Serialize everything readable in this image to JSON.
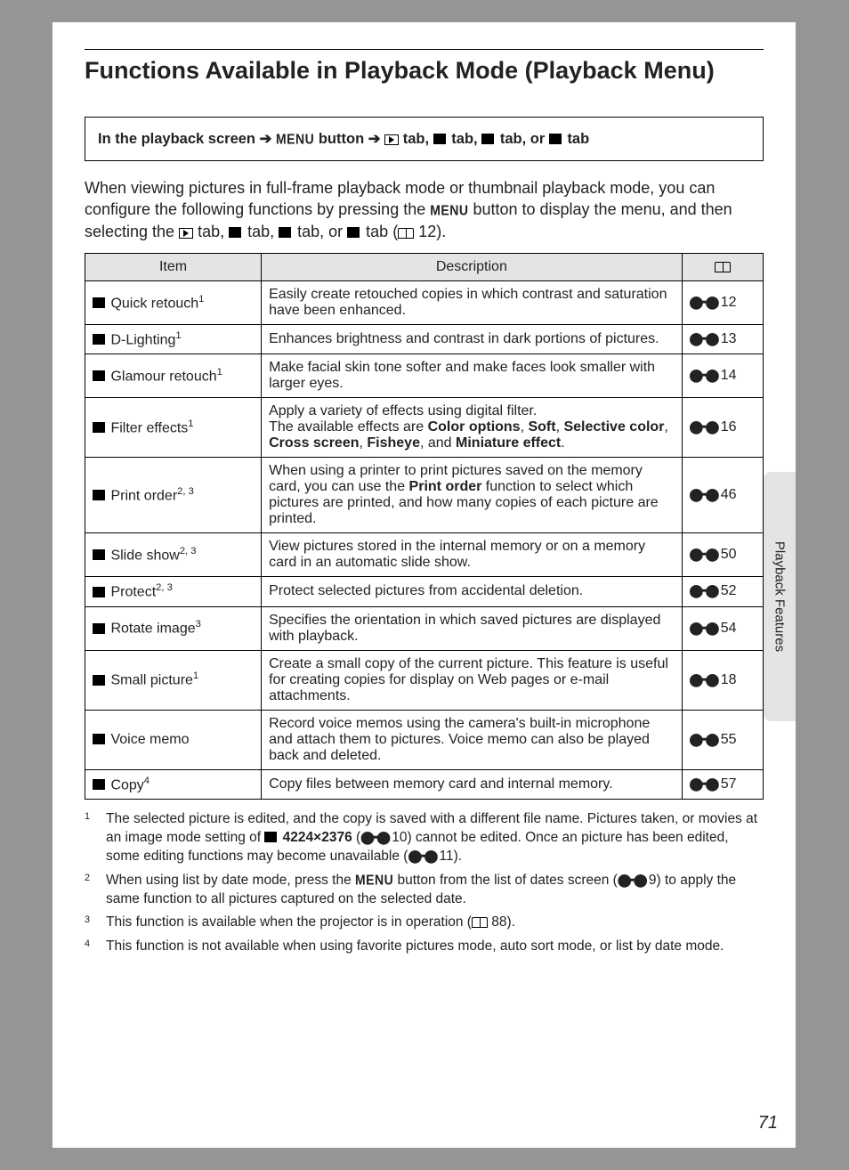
{
  "heading": "Functions Available in Playback Mode (Playback Menu)",
  "side_tab": "Playback Features",
  "nav_box": {
    "prefix": "In the playback screen",
    "arrow": "➔",
    "menu": "MENU",
    "button_word": "button",
    "tab_word": "tab,",
    "tab_word_or": "tab, or",
    "tab_word_end": "tab"
  },
  "intro": {
    "l1": "When viewing pictures in full-frame playback mode or thumbnail playback mode, you can configure the following functions by pressing the ",
    "menu": "MENU",
    "l2": " button to display the menu, and then selecting the ",
    "tab_sep": " tab, ",
    "tab_or": " tab, or ",
    "tab_end": " tab (",
    "page_ref": " 12)."
  },
  "headers": {
    "item": "Item",
    "desc": "Description"
  },
  "rows": [
    {
      "item_icon": "quick-retouch-icon",
      "item": " Quick retouch",
      "sup": "1",
      "desc": "Easily create retouched copies in which contrast and saturation have been enhanced.",
      "ref": " 12"
    },
    {
      "item_icon": "d-lighting-icon",
      "item": " D-Lighting",
      "sup": "1",
      "desc": "Enhances brightness and contrast in dark portions of pictures.",
      "ref": " 13"
    },
    {
      "item_icon": "glamour-icon",
      "item": " Glamour retouch",
      "sup": "1",
      "desc": "Make facial skin tone softer and make faces look smaller with larger eyes.",
      "ref": " 14"
    },
    {
      "item_icon": "filter-icon",
      "item": " Filter effects",
      "sup": "1",
      "desc_html": "Apply a variety of effects using digital filter.<br>The available effects are <b>Color options</b>, <b>Soft</b>, <b>Selective color</b>, <b>Cross screen</b>, <b>Fisheye</b>, and <b>Miniature effect</b>.",
      "ref": " 16"
    },
    {
      "item_icon": "print-order-icon",
      "item": " Print order",
      "sup": "2, 3",
      "desc_html": "When using a printer to print pictures saved on the memory card, you can use the <b>Print order</b> function to select which pictures are printed, and how many copies of each picture are printed.",
      "ref": " 46"
    },
    {
      "item_icon": "slide-show-icon",
      "item": " Slide show",
      "sup": "2, 3",
      "desc": "View pictures stored in the internal memory or on a memory card in an automatic slide show.",
      "ref": " 50"
    },
    {
      "item_icon": "protect-icon",
      "item": " Protect",
      "sup": "2, 3",
      "desc": "Protect selected pictures from accidental deletion.",
      "ref": " 52"
    },
    {
      "item_icon": "rotate-icon",
      "item": " Rotate image",
      "sup": "3",
      "desc": "Specifies the orientation in which saved pictures are displayed with playback.",
      "ref": " 54"
    },
    {
      "item_icon": "small-picture-icon",
      "item": " Small picture",
      "sup": "1",
      "desc": "Create a small copy of the current picture. This feature is useful for creating copies for display on Web pages or e-mail attachments.",
      "ref": " 18"
    },
    {
      "item_icon": "voice-memo-icon",
      "item": " Voice memo",
      "sup": "",
      "desc": "Record voice memos using the camera's built-in microphone and attach them to pictures. Voice memo can also be played back and deleted.",
      "ref": " 55"
    },
    {
      "item_icon": "copy-icon",
      "item": " Copy",
      "sup": "4",
      "desc": "Copy files between memory card and internal memory.",
      "ref": " 57"
    }
  ],
  "footnotes": [
    {
      "n": "1",
      "html": "The selected picture is edited, and the copy is saved with a different file name. Pictures taken, or movies at an image mode setting of <span class='icon' data-name='image-mode-icon' data-interactable='false'></span> <b>4224×2376</b> (<span class='link-icon' data-name='ref-link-icon' data-interactable='false'>⬤━⬤</span> 10) cannot be edited. Once an picture has been edited, some editing functions may become unavailable (<span class='link-icon' data-name='ref-link-icon' data-interactable='false'>⬤━⬤</span> 11)."
    },
    {
      "n": "2",
      "html": "When using list by date mode, press the <span class='menu-word' data-name='menu-word' data-interactable='false'>MENU</span> button from the list of dates screen (<span class='link-icon' data-name='ref-link-icon' data-interactable='false'>⬤━⬤</span> 9) to apply the same function to all pictures captured on the selected date."
    },
    {
      "n": "3",
      "html": "This function is available when the projector is in operation (<span class='book-icon' data-name='book-icon' data-interactable='false'></span> 88)."
    },
    {
      "n": "4",
      "html": "This function is not available when using favorite pictures mode, auto sort mode, or list by date mode."
    }
  ],
  "page_number": "71"
}
